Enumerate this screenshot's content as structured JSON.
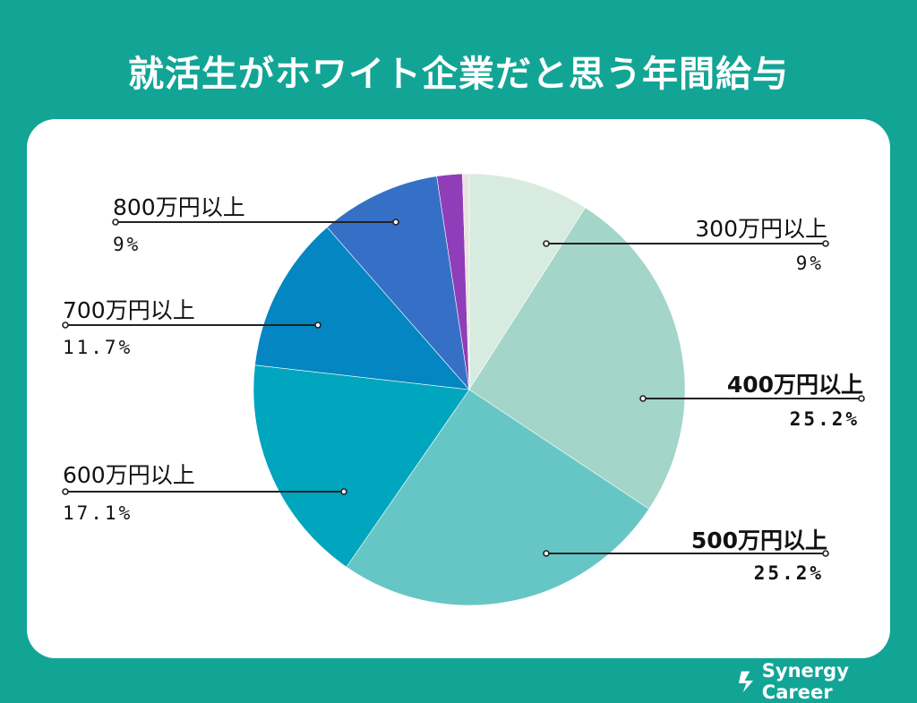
{
  "title": "就活生がホワイト企業だと思う年間給与",
  "brand": "Synergy Career",
  "icons": {
    "brand": "synergy-leaf-icon"
  },
  "colors": {
    "background": "#12a596",
    "card": "#ffffff",
    "leader": "#222222"
  },
  "chart_data": {
    "type": "pie",
    "title": "就活生がホワイト企業だと思う年間給与",
    "start": "12 o'clock",
    "direction": "clockwise",
    "legend": "none",
    "slices": [
      {
        "label": "300万円以上",
        "value": 9,
        "value_label": "9%",
        "color": "#d8ebe0",
        "bold": false
      },
      {
        "label": "400万円以上",
        "value": 25.2,
        "value_label": "25.2%",
        "color": "#a3d5c8",
        "bold": true
      },
      {
        "label": "500万円以上",
        "value": 25.2,
        "value_label": "25.2%",
        "color": "#66c6c6",
        "bold": true
      },
      {
        "label": "600万円以上",
        "value": 17.1,
        "value_label": "17.1%",
        "color": "#00a5be",
        "bold": false
      },
      {
        "label": "700万円以上",
        "value": 11.7,
        "value_label": "11.7%",
        "color": "#0386c1",
        "bold": false
      },
      {
        "label": "800万円以上",
        "value": 9,
        "value_label": "9%",
        "color": "#3570c6",
        "bold": false
      },
      {
        "label": "",
        "value": 1.9,
        "value_label": "",
        "color": "#8f3db8",
        "bold": false
      },
      {
        "label": "",
        "value": 0.5,
        "value_label": "",
        "color": "#eae3df",
        "bold": false
      }
    ]
  }
}
